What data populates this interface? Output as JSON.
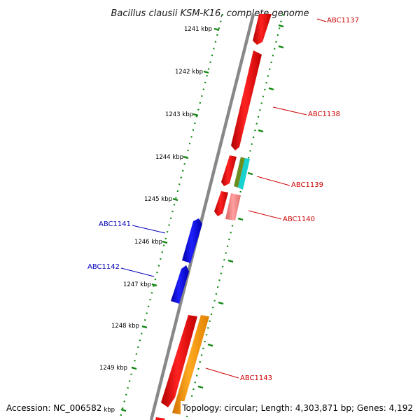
{
  "title": "Bacillus clausii KSM-K16, complete genome",
  "footer": {
    "accession": "Accession: NC_006582",
    "summary": "Topology: circular; Length: 4,303,871 bp; Genes: 4,192"
  },
  "ticks": [
    "1241 kbp",
    "1242 kbp",
    "1243 kbp",
    "1244 kbp",
    "1245 kbp",
    "1246 kbp",
    "1247 kbp",
    "1248 kbp",
    "1249 kbp",
    "1250 kbp"
  ],
  "genes": [
    {
      "name": "ABC1137",
      "strand": "forward",
      "color": "#ee0000"
    },
    {
      "name": "ABC1138",
      "strand": "forward",
      "color": "#ee0000"
    },
    {
      "name": "ABC1139",
      "strand": "forward",
      "color": "#ee0000"
    },
    {
      "name": "ABC1140",
      "strand": "forward",
      "color": "#ee0000"
    },
    {
      "name": "ABC1141",
      "strand": "reverse",
      "color": "#0000cc"
    },
    {
      "name": "ABC1142",
      "strand": "reverse",
      "color": "#0000cc"
    },
    {
      "name": "ABC1143",
      "strand": "forward",
      "color": "#ee0000"
    }
  ],
  "colors": {
    "forward_label": "#cc0000",
    "reverse_label": "#0000bb",
    "backbone": "#888888",
    "dotted_track": "#118811",
    "feature_red": "#ee1111",
    "feature_blue": "#1010dd",
    "feature_orange": "#ff9900",
    "feature_olive": "#6b8e23",
    "feature_cyan": "#17d0d0",
    "feature_pink": "#f08080"
  }
}
